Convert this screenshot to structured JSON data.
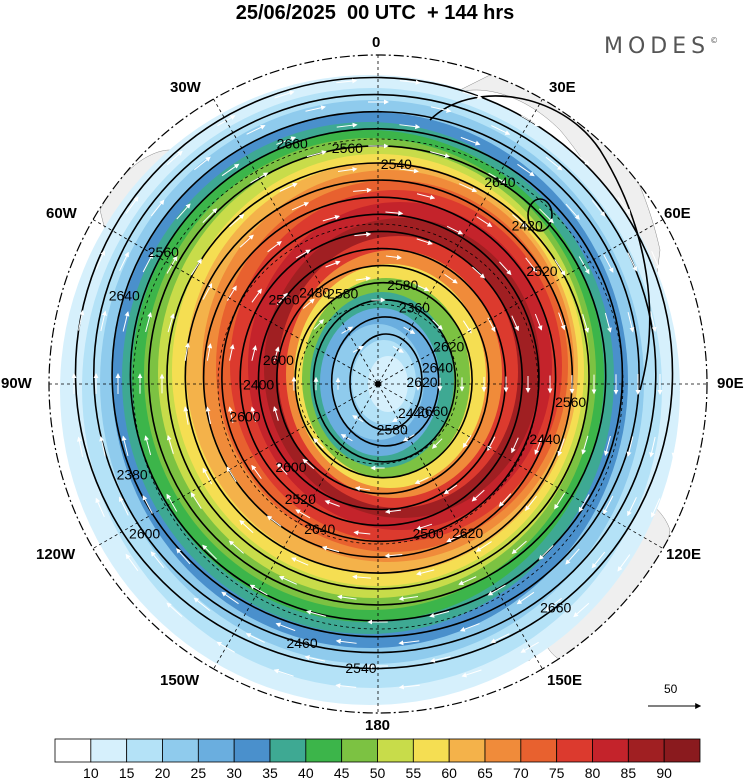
{
  "title": "25/06/2025  00 UTC  + 144 hrs",
  "brand": "MODES",
  "brand_mark": "©",
  "longitude_labels": {
    "lon_0": "0",
    "lon_30e": "30E",
    "lon_60e": "60E",
    "lon_90e": "90E",
    "lon_120e": "120E",
    "lon_150e": "150E",
    "lon_180": "180",
    "lon_150w": "150W",
    "lon_120w": "120W",
    "lon_90w": "90W",
    "lon_60w": "60W",
    "lon_30w": "30W"
  },
  "contour_labels": [
    "2620",
    "2600",
    "2540",
    "2660",
    "2600",
    "2520",
    "2460",
    "2580",
    "2440",
    "2380",
    "2360",
    "2500",
    "2560",
    "2640",
    "2520",
    "2560",
    "2440",
    "2400",
    "2420",
    "2540",
    "2480",
    "2560",
    "2600",
    "2580",
    "2620",
    "2640",
    "2620",
    "2640",
    "2660",
    "2660",
    "2600",
    "2640",
    "2580",
    "2560"
  ],
  "contour_levels": [
    2360,
    2380,
    2400,
    2420,
    2440,
    2460,
    2480,
    2500,
    2520,
    2540,
    2560,
    2580,
    2600,
    2620,
    2640,
    2660
  ],
  "wind_speed_shading": {
    "levels": [
      10,
      15,
      20,
      25,
      30,
      35,
      40,
      45,
      50,
      55,
      60,
      65,
      70,
      75,
      80,
      85,
      90
    ],
    "colors": [
      "#ffffff",
      "#d6f0fc",
      "#b4e2f7",
      "#8fcbed",
      "#6aaedf",
      "#4a90cc",
      "#3ea993",
      "#3cb54a",
      "#7cc242",
      "#c8dc4a",
      "#f5de52",
      "#f4b24a",
      "#f08b3a",
      "#e8612f",
      "#dc3a2e",
      "#c4232b",
      "#a01f22",
      "#8a1a1e"
    ]
  },
  "reference_vector": "50",
  "colors": {
    "land": "#efefef",
    "contour": "#000000",
    "grid": "#000000",
    "vectors": "#ffffff"
  }
}
